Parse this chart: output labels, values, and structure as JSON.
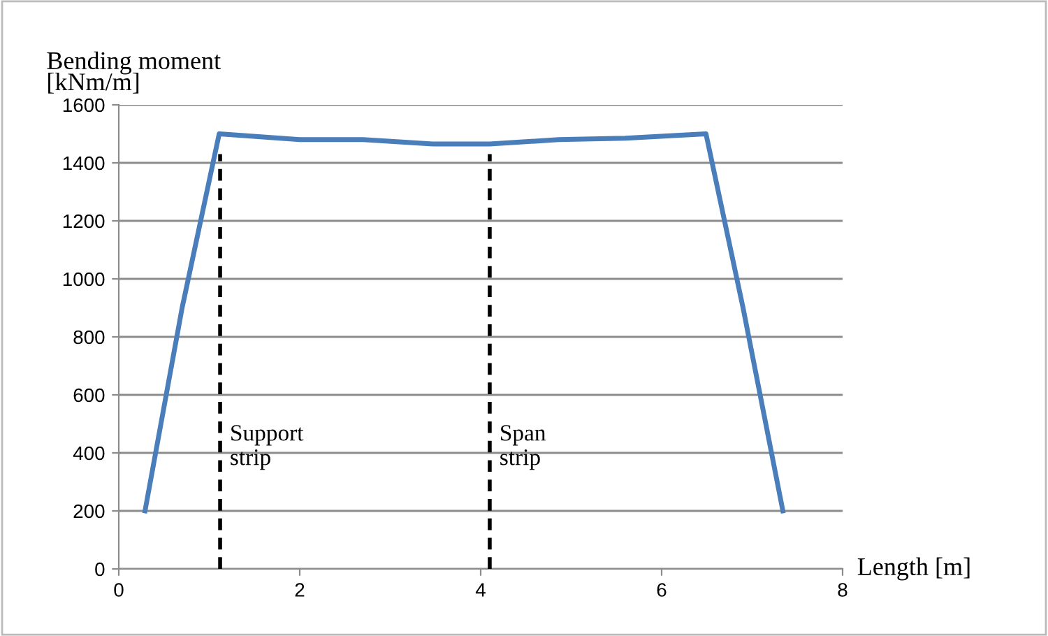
{
  "chart_data": {
    "type": "line",
    "xlabel": "Length [m]",
    "ylabel": "Bending moment\n[kNm/m]",
    "series": [
      {
        "color": "#4a7ebb",
        "x": [
          0.29,
          0.7,
          1.11,
          2.0,
          2.7,
          3.47,
          4.1,
          4.86,
          5.6,
          6.49,
          6.9,
          7.34
        ],
        "values": [
          200,
          900,
          1500,
          1480,
          1480,
          1465,
          1465,
          1480,
          1485,
          1500,
          900,
          200
        ],
        "line_style": "solid"
      },
      {
        "color": "#000000",
        "x": [
          1.12,
          1.12
        ],
        "values": [
          0,
          1430
        ],
        "line_style": "dashed"
      },
      {
        "color": "#000000",
        "x": [
          4.1,
          4.1
        ],
        "values": [
          0,
          1430
        ],
        "line_style": "dashed"
      }
    ],
    "annotations": [
      {
        "text": "Support\nstrip",
        "x": 1.12,
        "y": 420
      },
      {
        "text": "Span\nstrip",
        "x": 4.1,
        "y": 420
      }
    ],
    "xlim": [
      0,
      8
    ],
    "xticks": [
      0,
      2,
      4,
      6,
      8
    ],
    "ylim": [
      0,
      1600
    ],
    "yticks": [
      0,
      200,
      400,
      600,
      800,
      1000,
      1200,
      1400,
      1600
    ],
    "grid": "y"
  }
}
